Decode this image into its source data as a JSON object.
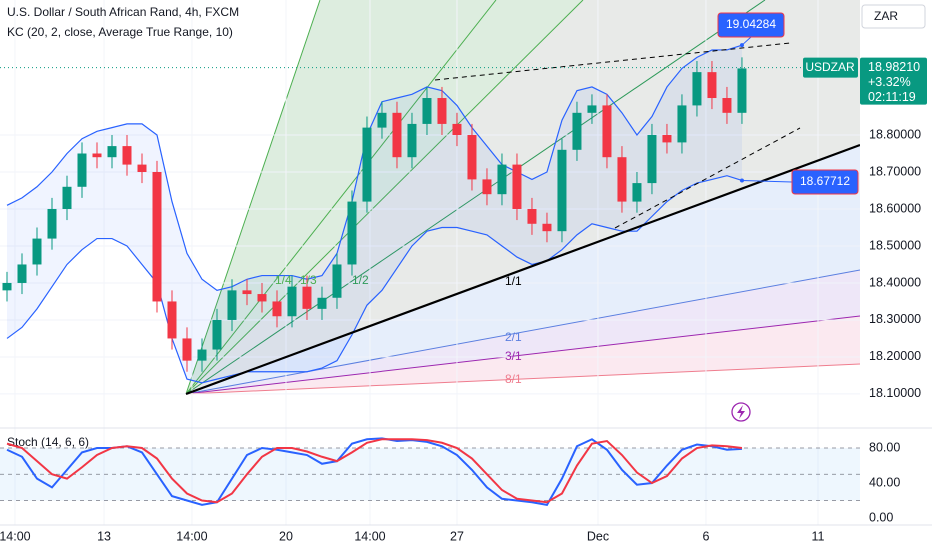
{
  "chart_data": [
    {
      "type": "candlestick",
      "title": "U.S. Dollar / South African Rand, 4h, FXCM",
      "indicator": "KC (20, 2, close, Average True Range, 10)",
      "currency": "ZAR",
      "symbol": "USDZAR",
      "last_price": 18.9821,
      "last_price_label": "18.98210",
      "change_label": "+3.32%",
      "countdown": "02:11:19",
      "up_color": "#089981",
      "down_color": "#f23645",
      "xlim": [
        -0.467,
        56.87
      ],
      "xticks": [
        {
          "value": 0.53,
          "label": "14:00"
        },
        {
          "value": 6.47,
          "label": "13"
        },
        {
          "value": 12.33,
          "label": "14:00"
        },
        {
          "value": 18.6,
          "label": "20"
        },
        {
          "value": 24.2,
          "label": "14:00"
        },
        {
          "value": 30,
          "label": "27"
        },
        {
          "value": 39.4,
          "label": "Dec"
        },
        {
          "value": 46.6,
          "label": "6"
        },
        {
          "value": 54.07,
          "label": "11"
        }
      ],
      "ylim": [
        18.016,
        19.165
      ],
      "yticks": [
        {
          "value": 18.1,
          "label": "18.10000"
        },
        {
          "value": 18.2,
          "label": "18.20000"
        },
        {
          "value": 18.3,
          "label": "18.30000"
        },
        {
          "value": 18.4,
          "label": "18.40000"
        },
        {
          "value": 18.5,
          "label": "18.50000"
        },
        {
          "value": 18.6,
          "label": "18.60000"
        },
        {
          "value": 18.7,
          "label": "18.70000"
        },
        {
          "value": 18.8,
          "label": "18.80000"
        }
      ],
      "open": [
        18.38,
        18.4,
        18.45,
        18.52,
        18.6,
        18.66,
        18.75,
        18.74,
        18.77,
        18.72,
        18.7,
        18.35,
        18.25,
        18.19,
        18.22,
        18.3,
        18.38,
        18.37,
        18.35,
        18.31,
        18.39,
        18.33,
        18.36,
        18.45,
        18.62,
        18.82,
        18.86,
        18.74,
        18.83,
        18.9,
        18.83,
        18.8,
        18.68,
        18.64,
        18.72,
        18.6,
        18.56,
        18.54,
        18.76,
        18.86,
        18.88,
        18.74,
        18.62,
        18.67,
        18.8,
        18.78,
        18.88,
        18.97,
        18.9,
        18.86
      ],
      "high": [
        18.43,
        18.48,
        18.55,
        18.63,
        18.69,
        18.78,
        18.78,
        18.8,
        18.8,
        18.75,
        18.73,
        18.38,
        18.28,
        18.25,
        18.33,
        18.41,
        18.41,
        18.4,
        18.38,
        18.42,
        18.42,
        18.39,
        18.48,
        18.65,
        18.85,
        18.89,
        18.89,
        18.86,
        18.93,
        18.93,
        18.86,
        18.83,
        18.71,
        18.75,
        18.75,
        18.63,
        18.59,
        18.79,
        18.89,
        18.91,
        18.91,
        18.77,
        18.7,
        18.83,
        18.83,
        18.91,
        19.0,
        19.0,
        18.93,
        19.01
      ],
      "low": [
        18.35,
        18.37,
        18.42,
        18.49,
        18.57,
        18.63,
        18.71,
        18.71,
        18.69,
        18.67,
        18.32,
        18.22,
        18.16,
        18.16,
        18.19,
        18.27,
        18.34,
        18.32,
        18.28,
        18.28,
        18.3,
        18.3,
        18.33,
        18.42,
        18.59,
        18.79,
        18.71,
        18.71,
        18.8,
        18.8,
        18.77,
        18.65,
        18.61,
        18.61,
        18.57,
        18.53,
        18.51,
        18.51,
        18.73,
        18.83,
        18.71,
        18.59,
        18.59,
        18.64,
        18.75,
        18.75,
        18.85,
        18.87,
        18.83,
        18.83
      ],
      "close": [
        18.4,
        18.45,
        18.52,
        18.6,
        18.66,
        18.75,
        18.74,
        18.77,
        18.72,
        18.7,
        18.35,
        18.25,
        18.19,
        18.22,
        18.3,
        18.38,
        18.37,
        18.35,
        18.31,
        18.39,
        18.33,
        18.36,
        18.45,
        18.62,
        18.82,
        18.86,
        18.74,
        18.83,
        18.9,
        18.83,
        18.8,
        18.68,
        18.64,
        18.72,
        18.6,
        18.56,
        18.54,
        18.76,
        18.86,
        18.88,
        18.74,
        18.62,
        18.67,
        18.8,
        18.78,
        18.88,
        18.97,
        18.9,
        18.86,
        18.98
      ],
      "kc_upper": {
        "color": "#2962ff",
        "end_label": "19.04284",
        "values": [
          18.61,
          18.63,
          18.66,
          18.7,
          18.75,
          18.79,
          18.81,
          18.82,
          18.83,
          18.83,
          18.8,
          18.62,
          18.48,
          18.41,
          18.38,
          18.39,
          18.41,
          18.42,
          18.42,
          18.42,
          18.41,
          18.42,
          18.48,
          18.62,
          18.8,
          18.89,
          18.9,
          18.91,
          18.93,
          18.92,
          18.88,
          18.82,
          18.77,
          18.72,
          18.7,
          18.68,
          18.7,
          18.84,
          18.92,
          18.93,
          18.91,
          18.86,
          18.8,
          18.85,
          18.93,
          18.98,
          19.01,
          19.03,
          19.03,
          19.04284
        ]
      },
      "kc_lower": {
        "color": "#2962ff",
        "end_label": "18.67712",
        "values": [
          18.25,
          18.28,
          18.33,
          18.39,
          18.45,
          18.49,
          18.52,
          18.52,
          18.5,
          18.45,
          18.4,
          18.25,
          18.14,
          18.13,
          18.14,
          18.15,
          18.16,
          18.16,
          18.16,
          18.16,
          18.16,
          18.17,
          18.19,
          18.26,
          18.34,
          18.38,
          18.44,
          18.5,
          18.54,
          18.55,
          18.55,
          18.54,
          18.53,
          18.5,
          18.47,
          18.45,
          18.46,
          18.49,
          18.53,
          18.56,
          18.55,
          18.54,
          18.54,
          18.58,
          18.62,
          18.65,
          18.67,
          18.68,
          18.69,
          18.67712
        ]
      },
      "fan_labels": [
        "1/4",
        "1/3",
        "1/2",
        "1/1",
        "2/1",
        "3/1",
        "8/1"
      ]
    },
    {
      "type": "line",
      "title": "Stoch (14, 6, 6)",
      "xlim": [
        -0.467,
        56.87
      ],
      "ylim": [
        -8,
        100.6
      ],
      "yticks": [
        {
          "value": 0,
          "label": "0.00"
        },
        {
          "value": 40,
          "label": "40.00"
        },
        {
          "value": 80,
          "label": "80.00"
        }
      ],
      "levels": [
        20,
        50,
        80
      ],
      "series": [
        {
          "color": "#2962ff",
          "values": [
            78,
            70,
            45,
            35,
            55,
            75,
            80,
            80,
            82,
            75,
            50,
            25,
            20,
            15,
            18,
            45,
            72,
            80,
            78,
            75,
            72,
            62,
            65,
            85,
            90,
            91,
            88,
            89,
            87,
            82,
            72,
            55,
            35,
            22,
            20,
            18,
            15,
            45,
            82,
            90,
            78,
            55,
            38,
            40,
            60,
            78,
            84,
            82,
            78,
            79
          ]
        },
        {
          "color": "#f23645",
          "values": [
            85,
            80,
            65,
            50,
            45,
            58,
            72,
            80,
            82,
            80,
            68,
            45,
            28,
            20,
            18,
            28,
            50,
            70,
            80,
            80,
            76,
            70,
            65,
            75,
            86,
            90,
            90,
            90,
            89,
            86,
            80,
            68,
            50,
            32,
            22,
            20,
            18,
            28,
            60,
            85,
            88,
            72,
            52,
            40,
            48,
            68,
            80,
            83,
            82,
            80
          ]
        }
      ]
    }
  ]
}
